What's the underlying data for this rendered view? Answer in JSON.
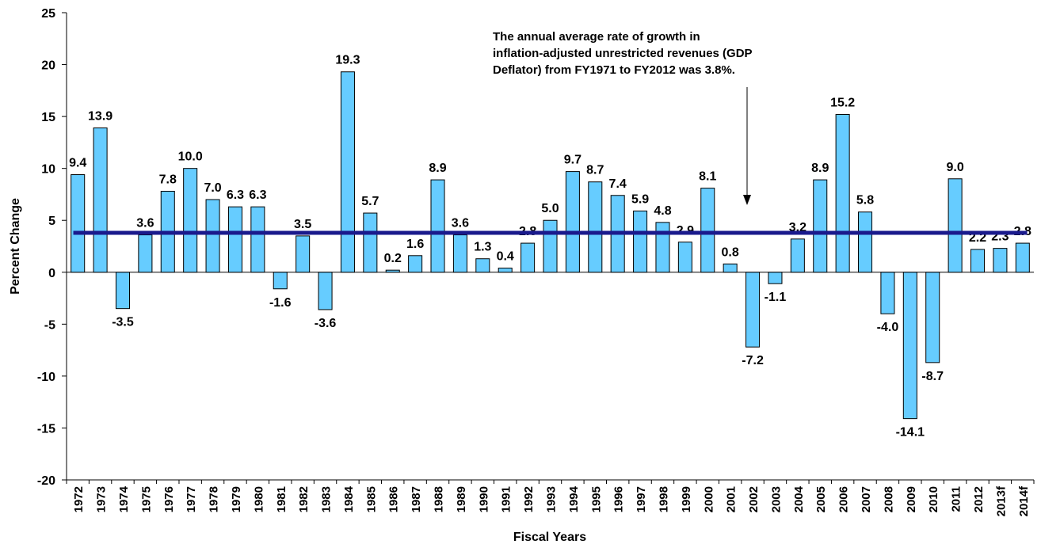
{
  "chart_data": {
    "type": "bar",
    "x_label": "Fiscal Years",
    "y_label": "Percent Change",
    "annotation": [
      "The annual average rate of growth in",
      "inflation-adjusted unrestricted revenues (GDP",
      "Deflator) from FY1971 to FY2012 was 3.8%."
    ],
    "categories": [
      "1972",
      "1973",
      "1974",
      "1975",
      "1976",
      "1977",
      "1978",
      "1979",
      "1980",
      "1981",
      "1982",
      "1983",
      "1984",
      "1985",
      "1986",
      "1987",
      "1988",
      "1989",
      "1990",
      "1991",
      "1992",
      "1993",
      "1994",
      "1995",
      "1996",
      "1997",
      "1998",
      "1999",
      "2000",
      "2001",
      "2002",
      "2003",
      "2004",
      "2005",
      "2006",
      "2007",
      "2008",
      "2009",
      "2010",
      "2011",
      "2012",
      "2013f",
      "2014f"
    ],
    "values": [
      9.4,
      13.9,
      -3.5,
      3.6,
      7.8,
      10.0,
      7.0,
      6.3,
      6.3,
      -1.6,
      3.5,
      -3.6,
      19.3,
      5.7,
      0.2,
      1.6,
      8.9,
      3.6,
      1.3,
      0.4,
      2.8,
      5.0,
      9.7,
      8.7,
      7.4,
      5.9,
      4.8,
      2.9,
      8.1,
      0.8,
      -7.2,
      -1.1,
      3.2,
      8.9,
      15.2,
      5.8,
      -4.0,
      -14.1,
      -8.7,
      9.0,
      2.2,
      2.3,
      2.8
    ],
    "value_labels": [
      "9.4",
      "13.9",
      "-3.5",
      "3.6",
      "7.8",
      "10.0",
      "7.0",
      "6.3",
      "6.3",
      "-1.6",
      "3.5",
      "-3.6",
      "19.3",
      "5.7",
      "0.2",
      "1.6",
      "8.9",
      "3.6",
      "1.3",
      "0.4",
      "2.8",
      "5.0",
      "9.7",
      "8.7",
      "7.4",
      "5.9",
      "4.8",
      "2.9",
      "8.1",
      "0.8",
      "-7.2",
      "-1.1",
      "3.2",
      "8.9",
      "15.2",
      "5.8",
      "-4.0",
      "-14.1",
      "-8.7",
      "9.0",
      "2.2",
      "2.3",
      "2.8"
    ],
    "color": "#66ccff",
    "average": {
      "value": 3.8,
      "color": "#1a1a8c"
    },
    "ylim": [
      -20,
      25
    ],
    "yticks": [
      -20,
      -15,
      -10,
      -5,
      0,
      5,
      10,
      15,
      20,
      25
    ],
    "grid": false
  }
}
